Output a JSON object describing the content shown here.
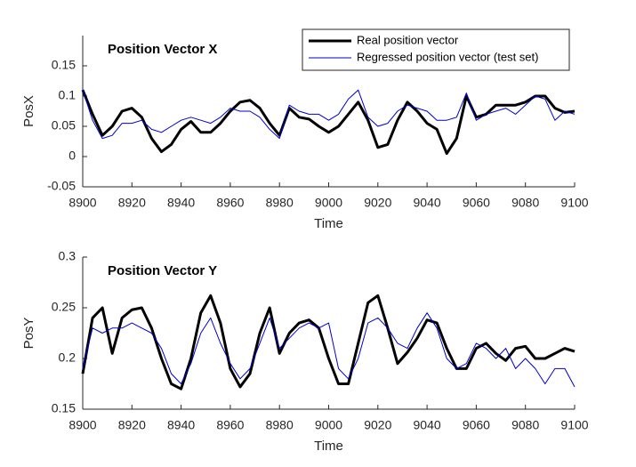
{
  "chart_data": [
    {
      "type": "line",
      "title": "Position Vector X",
      "xlabel": "Time",
      "ylabel": "PosX",
      "x": [
        8900,
        8904,
        8908,
        8912,
        8916,
        8920,
        8924,
        8928,
        8932,
        8936,
        8940,
        8944,
        8948,
        8952,
        8956,
        8960,
        8964,
        8968,
        8972,
        8976,
        8980,
        8984,
        8988,
        8992,
        8996,
        9000,
        9004,
        9008,
        9012,
        9016,
        9020,
        9024,
        9028,
        9032,
        9036,
        9040,
        9044,
        9048,
        9052,
        9056,
        9060,
        9064,
        9068,
        9072,
        9076,
        9080,
        9084,
        9088,
        9092,
        9096,
        9100
      ],
      "series": [
        {
          "name": "Real position vector",
          "color": "#000000",
          "width": 3,
          "values": [
            0.11,
            0.07,
            0.035,
            0.05,
            0.075,
            0.08,
            0.065,
            0.03,
            0.008,
            0.02,
            0.045,
            0.058,
            0.04,
            0.04,
            0.055,
            0.075,
            0.09,
            0.093,
            0.08,
            0.055,
            0.035,
            0.08,
            0.065,
            0.062,
            0.05,
            0.04,
            0.05,
            0.07,
            0.09,
            0.06,
            0.015,
            0.02,
            0.06,
            0.09,
            0.075,
            0.055,
            0.045,
            0.005,
            0.03,
            0.1,
            0.065,
            0.07,
            0.085,
            0.085,
            0.085,
            0.09,
            0.1,
            0.1,
            0.08,
            0.073,
            0.075
          ]
        },
        {
          "name": "Regressed position vector (test set)",
          "color": "#0000cc",
          "width": 1,
          "values": [
            0.11,
            0.06,
            0.03,
            0.035,
            0.055,
            0.055,
            0.06,
            0.045,
            0.04,
            0.05,
            0.06,
            0.065,
            0.06,
            0.055,
            0.065,
            0.08,
            0.075,
            0.075,
            0.065,
            0.045,
            0.03,
            0.085,
            0.075,
            0.07,
            0.07,
            0.06,
            0.07,
            0.095,
            0.11,
            0.065,
            0.05,
            0.055,
            0.075,
            0.085,
            0.08,
            0.075,
            0.06,
            0.06,
            0.065,
            0.105,
            0.06,
            0.07,
            0.075,
            0.08,
            0.07,
            0.085,
            0.1,
            0.095,
            0.06,
            0.075,
            0.07
          ]
        }
      ],
      "xlim": [
        8900,
        9100
      ],
      "xticks": [
        8900,
        8920,
        8940,
        8960,
        8980,
        9000,
        9020,
        9040,
        9060,
        9080,
        9100
      ],
      "ylim": [
        -0.05,
        0.2
      ],
      "yticks": [
        -0.05,
        0,
        0.05,
        0.1,
        0.15
      ],
      "legend": "top-right"
    },
    {
      "type": "line",
      "title": "Position Vector Y",
      "xlabel": "Time",
      "ylabel": "PosY",
      "x": [
        8900,
        8904,
        8908,
        8912,
        8916,
        8920,
        8924,
        8928,
        8932,
        8936,
        8940,
        8944,
        8948,
        8952,
        8956,
        8960,
        8964,
        8968,
        8972,
        8976,
        8980,
        8984,
        8988,
        8992,
        8996,
        9000,
        9004,
        9008,
        9012,
        9016,
        9020,
        9024,
        9028,
        9032,
        9036,
        9040,
        9044,
        9048,
        9052,
        9056,
        9060,
        9064,
        9068,
        9072,
        9076,
        9080,
        9084,
        9088,
        9092,
        9096,
        9100
      ],
      "series": [
        {
          "color": "#000000",
          "width": 3,
          "values": [
            0.185,
            0.24,
            0.25,
            0.205,
            0.24,
            0.248,
            0.25,
            0.23,
            0.2,
            0.175,
            0.17,
            0.2,
            0.245,
            0.262,
            0.235,
            0.19,
            0.172,
            0.185,
            0.225,
            0.25,
            0.205,
            0.225,
            0.235,
            0.238,
            0.23,
            0.2,
            0.175,
            0.175,
            0.215,
            0.255,
            0.262,
            0.23,
            0.195,
            0.206,
            0.22,
            0.238,
            0.235,
            0.21,
            0.19,
            0.19,
            0.21,
            0.215,
            0.205,
            0.198,
            0.21,
            0.212,
            0.2,
            0.2,
            0.205,
            0.21,
            0.207
          ]
        },
        {
          "color": "#0000cc",
          "width": 1,
          "values": [
            0.19,
            0.23,
            0.225,
            0.23,
            0.23,
            0.235,
            0.23,
            0.225,
            0.21,
            0.185,
            0.175,
            0.195,
            0.225,
            0.24,
            0.215,
            0.195,
            0.18,
            0.19,
            0.215,
            0.24,
            0.21,
            0.22,
            0.23,
            0.235,
            0.23,
            0.235,
            0.19,
            0.18,
            0.2,
            0.235,
            0.24,
            0.23,
            0.215,
            0.21,
            0.23,
            0.245,
            0.23,
            0.2,
            0.19,
            0.195,
            0.215,
            0.21,
            0.2,
            0.21,
            0.19,
            0.2,
            0.19,
            0.175,
            0.19,
            0.19,
            0.172
          ]
        }
      ],
      "xlim": [
        8900,
        9100
      ],
      "xticks": [
        8900,
        8920,
        8940,
        8960,
        8980,
        9000,
        9020,
        9040,
        9060,
        9080,
        9100
      ],
      "ylim": [
        0.15,
        0.3
      ],
      "yticks": [
        0.15,
        0.2,
        0.25,
        0.3
      ]
    }
  ]
}
